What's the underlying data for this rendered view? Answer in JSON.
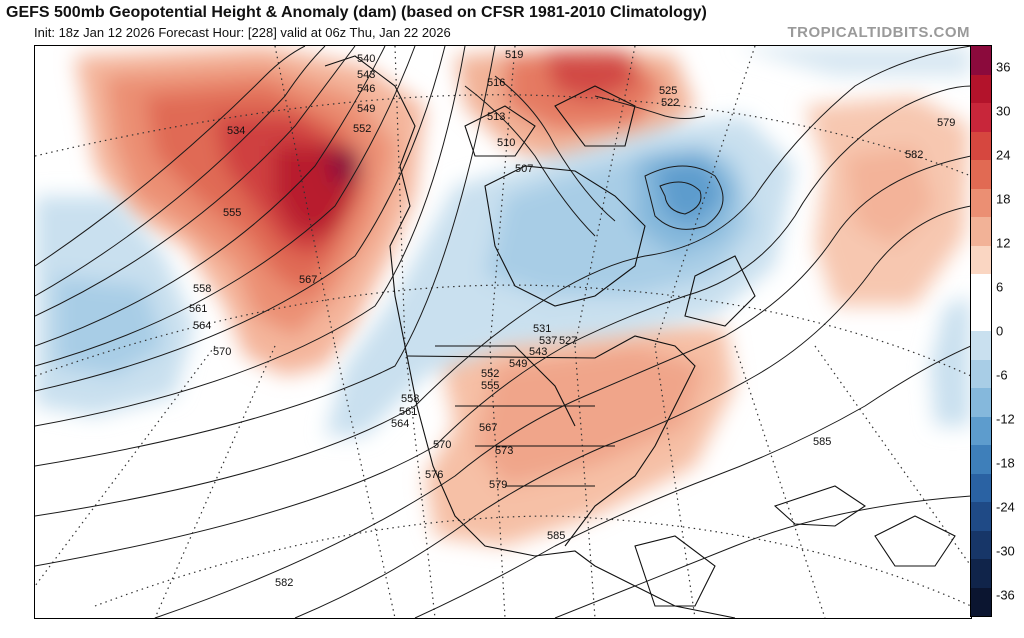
{
  "header": {
    "title": "GEFS 500mb Geopotential Height & Anomaly (dam) (based on CFSR 1981-2010 Climatology)",
    "subtitle": "Init: 18z Jan 12 2026   Forecast Hour: [228]   valid at 06z Thu, Jan 22 2026",
    "credit": "TROPICALTIDBITS.COM"
  },
  "colorbar": {
    "ticks": [
      "36",
      "30",
      "24",
      "18",
      "12",
      "6",
      "0",
      "-6",
      "-12",
      "-18",
      "-24",
      "-30",
      "-36"
    ],
    "colors": [
      "#8b0a3c",
      "#b3132b",
      "#c8263a",
      "#d6473f",
      "#e16a53",
      "#eb8f73",
      "#f2b297",
      "#fad6c2",
      "#ffffff",
      "#ffffff",
      "#c9e0ef",
      "#a8cde6",
      "#85b8dc",
      "#5d9ccd",
      "#3e7fba",
      "#2a62a3",
      "#1f4a86",
      "#173668",
      "#10244a",
      "#0b1530"
    ]
  },
  "contour_labels": [
    "540",
    "543",
    "546",
    "549",
    "552",
    "534",
    "555",
    "558",
    "561",
    "564",
    "567",
    "570",
    "573",
    "576",
    "579",
    "582",
    "585",
    "519",
    "516",
    "513",
    "510",
    "507",
    "525",
    "522",
    "527",
    "531",
    "537",
    "543",
    "549",
    "552",
    "555",
    "558",
    "561",
    "564",
    "567",
    "570",
    "573",
    "576",
    "579",
    "582",
    "585",
    "579",
    "582",
    "582"
  ]
}
